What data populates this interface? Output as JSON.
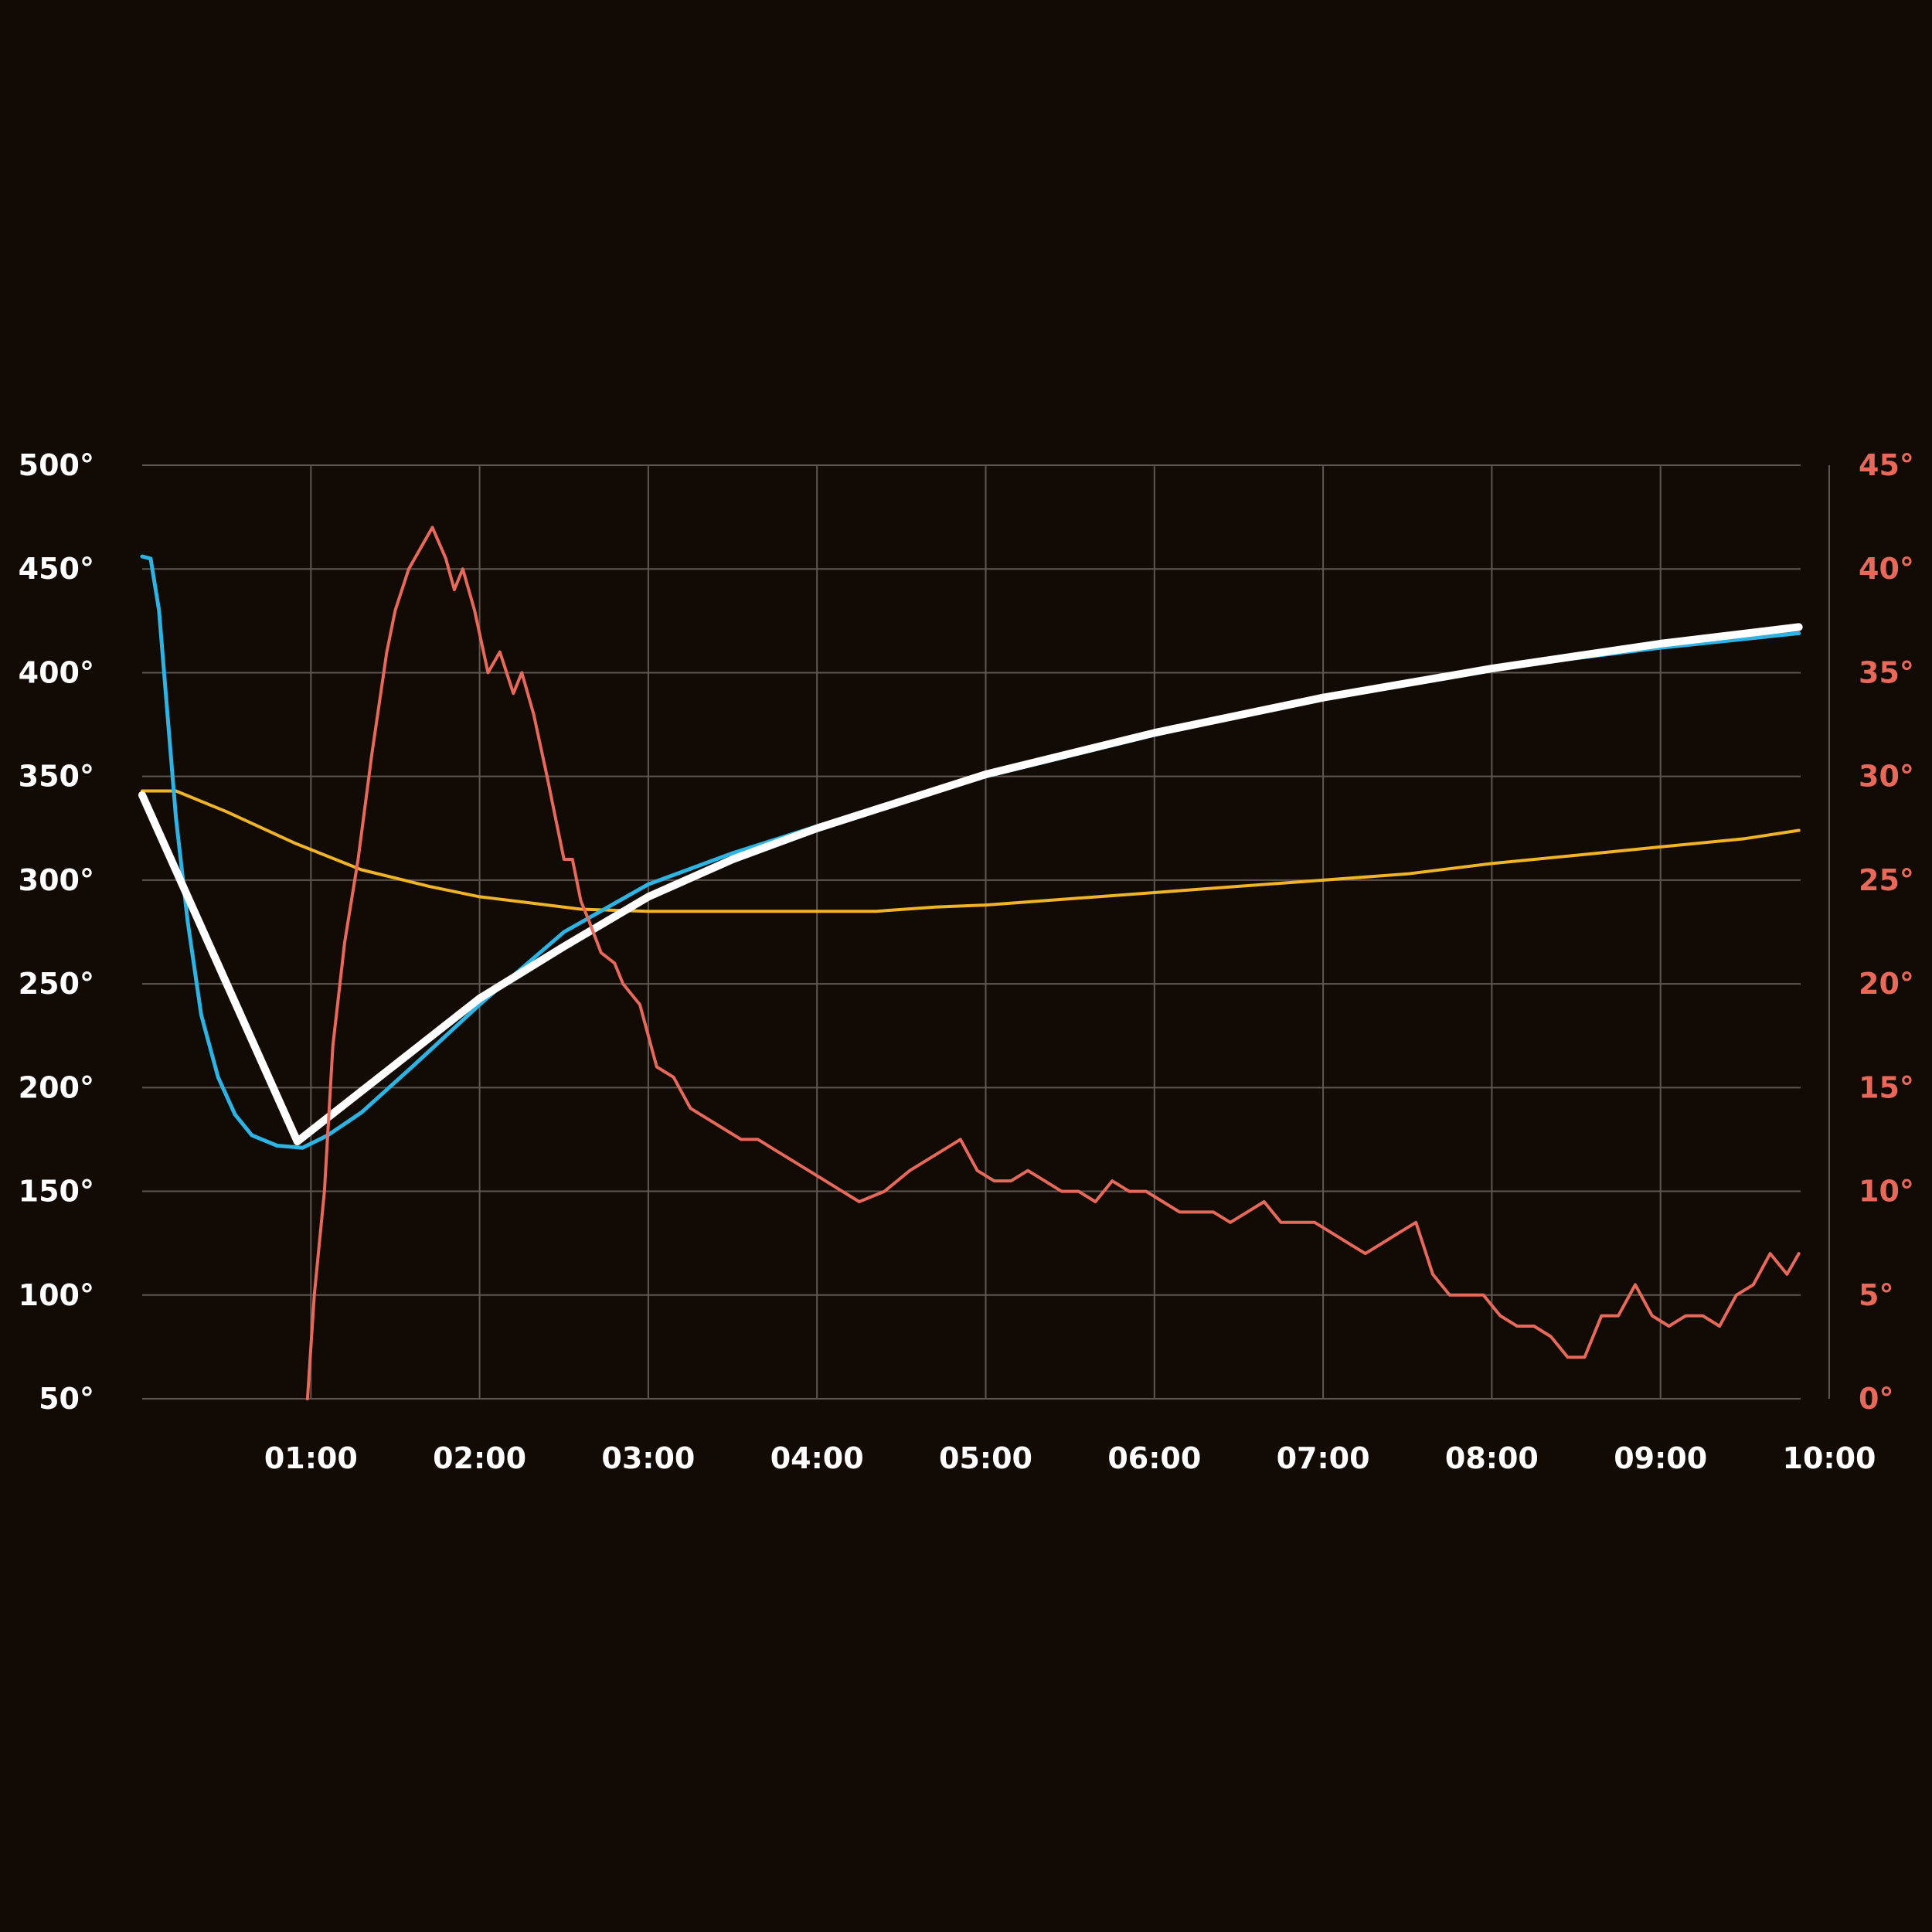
{
  "chart_data": {
    "type": "line",
    "background": "#120b05",
    "grid": true,
    "grid_color": "#5e5751",
    "x_axis": {
      "ticks": [
        "01:00",
        "02:00",
        "03:00",
        "04:00",
        "05:00",
        "06:00",
        "07:00",
        "08:00",
        "09:00",
        "10:00"
      ],
      "tick_minutes": [
        1,
        2,
        3,
        4,
        5,
        6,
        7,
        8,
        9,
        10
      ],
      "range_minutes": [
        0,
        10
      ],
      "label_color": "#ffffff"
    },
    "y_axis_left": {
      "ticks": [
        "50°",
        "100°",
        "150°",
        "200°",
        "250°",
        "300°",
        "350°",
        "400°",
        "450°",
        "500°"
      ],
      "tick_values": [
        50,
        100,
        150,
        200,
        250,
        300,
        350,
        400,
        450,
        500
      ],
      "range": [
        50,
        500
      ],
      "label_color": "#ffffff"
    },
    "y_axis_right": {
      "ticks": [
        "0°",
        "5°",
        "10°",
        "15°",
        "20°",
        "25°",
        "30°",
        "35°",
        "40°",
        "45°"
      ],
      "tick_values": [
        0,
        5,
        10,
        15,
        20,
        25,
        30,
        35,
        40,
        45
      ],
      "range": [
        0,
        45
      ],
      "label_color": "#e8695a"
    },
    "series": [
      {
        "axis": "left",
        "color": "#f1b427",
        "width": 4,
        "x_minutes": [
          0,
          0.2,
          0.5,
          0.9,
          1.3,
          1.7,
          2.0,
          2.3,
          2.6,
          3.0,
          3.5,
          4.0,
          4.35,
          4.7,
          5.0,
          5.5,
          6.0,
          6.5,
          7.0,
          7.5,
          8.0,
          8.5,
          9.0,
          9.5,
          9.82
        ],
        "values": [
          343,
          343,
          333,
          318,
          305,
          297,
          292,
          289,
          286,
          285,
          285,
          285,
          285,
          287,
          288,
          291,
          294,
          297,
          300,
          303,
          308,
          312,
          316,
          320,
          324
        ]
      },
      {
        "axis": "left",
        "color": "#2cb4e5",
        "width": 5,
        "x_minutes": [
          0,
          0.05,
          0.1,
          0.15,
          0.2,
          0.27,
          0.35,
          0.45,
          0.55,
          0.65,
          0.8,
          0.95,
          1.1,
          1.3,
          1.6,
          2.0,
          2.5,
          3.0,
          3.5,
          4.0,
          5.0,
          6.0,
          7.0,
          8.0,
          9.0,
          9.82
        ],
        "values": [
          456,
          455,
          430,
          380,
          330,
          280,
          235,
          205,
          187,
          177,
          172,
          171,
          177,
          188,
          210,
          240,
          275,
          298,
          313,
          326,
          350,
          370,
          388,
          402,
          412,
          419
        ]
      },
      {
        "axis": "left",
        "color": "#ffffff",
        "width": 10,
        "x_minutes": [
          0,
          0.92,
          2.0,
          2.5,
          3.0,
          3.5,
          4.0,
          5.0,
          6.0,
          7.0,
          8.0,
          9.0,
          9.82
        ],
        "values": [
          341,
          174,
          243,
          268,
          292,
          310,
          325,
          351,
          371,
          388,
          402,
          414,
          422
        ]
      },
      {
        "axis": "right",
        "color": "#e8695a",
        "width": 4,
        "x_minutes": [
          0.98,
          1.02,
          1.08,
          1.13,
          1.2,
          1.28,
          1.36,
          1.45,
          1.5,
          1.58,
          1.65,
          1.72,
          1.8,
          1.85,
          1.9,
          1.97,
          2.05,
          2.12,
          2.2,
          2.25,
          2.32,
          2.4,
          2.45,
          2.5,
          2.55,
          2.6,
          2.65,
          2.72,
          2.8,
          2.85,
          2.95,
          3.05,
          3.15,
          3.25,
          3.35,
          3.45,
          3.55,
          3.65,
          3.75,
          3.85,
          3.95,
          4.05,
          4.15,
          4.25,
          4.4,
          4.55,
          4.65,
          4.75,
          4.85,
          4.95,
          5.05,
          5.15,
          5.25,
          5.35,
          5.45,
          5.55,
          5.65,
          5.75,
          5.85,
          5.95,
          6.05,
          6.15,
          6.25,
          6.35,
          6.45,
          6.55,
          6.65,
          6.75,
          6.85,
          6.95,
          7.05,
          7.15,
          7.25,
          7.35,
          7.45,
          7.55,
          7.65,
          7.75,
          7.85,
          7.95,
          8.05,
          8.15,
          8.25,
          8.35,
          8.45,
          8.55,
          8.65,
          8.75,
          8.85,
          8.95,
          9.05,
          9.15,
          9.25,
          9.35,
          9.45,
          9.55,
          9.65,
          9.75,
          9.82
        ],
        "values": [
          0,
          5,
          10,
          17,
          22,
          26,
          31,
          36,
          38,
          40,
          41,
          42,
          40.5,
          39,
          40,
          38,
          35,
          36,
          34,
          35,
          33,
          30,
          28,
          26,
          26,
          24,
          23,
          21.5,
          21,
          20,
          19,
          16,
          15.5,
          14,
          13.5,
          13,
          12.5,
          12.5,
          12,
          11.5,
          11,
          10.5,
          10,
          9.5,
          10,
          11,
          11.5,
          12,
          12.5,
          11,
          10.5,
          10.5,
          11,
          10.5,
          10,
          10,
          9.5,
          10.5,
          10,
          10,
          9.5,
          9,
          9,
          9,
          8.5,
          9,
          9.5,
          8.5,
          8.5,
          8.5,
          8,
          7.5,
          7,
          7.5,
          8,
          8.5,
          6,
          5,
          5,
          5,
          4,
          3.5,
          3.5,
          3,
          2,
          2,
          4,
          4,
          5.5,
          4,
          3.5,
          4,
          4,
          3.5,
          5,
          5.5,
          7,
          6,
          7
        ]
      }
    ]
  }
}
